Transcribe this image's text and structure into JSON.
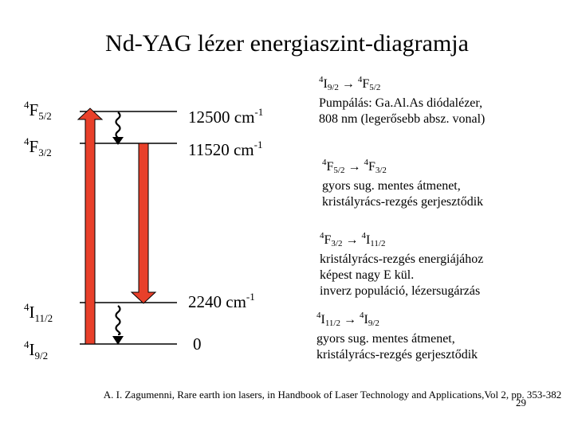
{
  "title": "Nd-YAG lézer energiaszint-diagramja",
  "levels": [
    {
      "term_sup": "4",
      "term_main": "F",
      "term_sub": "5/2",
      "energy": "12500 cm",
      "energy_sup": "-1"
    },
    {
      "term_sup": "4",
      "term_main": "F",
      "term_sub": "3/2",
      "energy": "11520 cm",
      "energy_sup": "-1"
    },
    {
      "term_sup": "4",
      "term_main": "I",
      "term_sub": "11/2",
      "energy": "2240 cm",
      "energy_sup": "-1"
    },
    {
      "term_sup": "4",
      "term_main": "I",
      "term_sub": "9/2",
      "energy": "0",
      "energy_sup": ""
    }
  ],
  "notes": [
    {
      "from_sup": "4",
      "from_main": "I",
      "from_sub": "9/2",
      "arrow": "→",
      "to_sup": "4",
      "to_main": "F",
      "to_sub": "5/2",
      "lines": [
        "Pumpálás: Ga.Al.As diódalézer,",
        "808 nm (legerősebb absz. vonal)"
      ]
    },
    {
      "from_sup": "4",
      "from_main": "F",
      "from_sub": "5/2",
      "arrow": "→",
      "to_sup": "4",
      "to_main": "F",
      "to_sub": "3/2",
      "lines": [
        "gyors sug. mentes átmenet,",
        "kristályrács-rezgés gerjesztődik"
      ]
    },
    {
      "from_sup": "4",
      "from_main": "F",
      "from_sub": "3/2",
      "arrow": "→",
      "to_sup": "4",
      "to_main": "I",
      "to_sub": "11/2",
      "lines": [
        "kristályrács-rezgés energiájához",
        "képest nagy E kül.",
        "inverz populáció, lézersugárzás"
      ]
    },
    {
      "from_sup": "4",
      "from_main": "I",
      "from_sub": "11/2",
      "arrow": "→",
      "to_sup": "4",
      "to_main": "I",
      "to_sub": "9/2",
      "lines": [
        "gyors sug. mentes átmenet,",
        "kristályrács-rezgés gerjesztődik"
      ]
    }
  ],
  "citation": "A. I. Zagumenni, Rare earth ion lasers, in Handbook of Laser Technology and Applications,Vol 2, pp. 353-382",
  "page_number": "29",
  "colors": {
    "arrow_fill": "#e8402a",
    "arrow_stroke": "#000000",
    "level_line": "#000000"
  }
}
